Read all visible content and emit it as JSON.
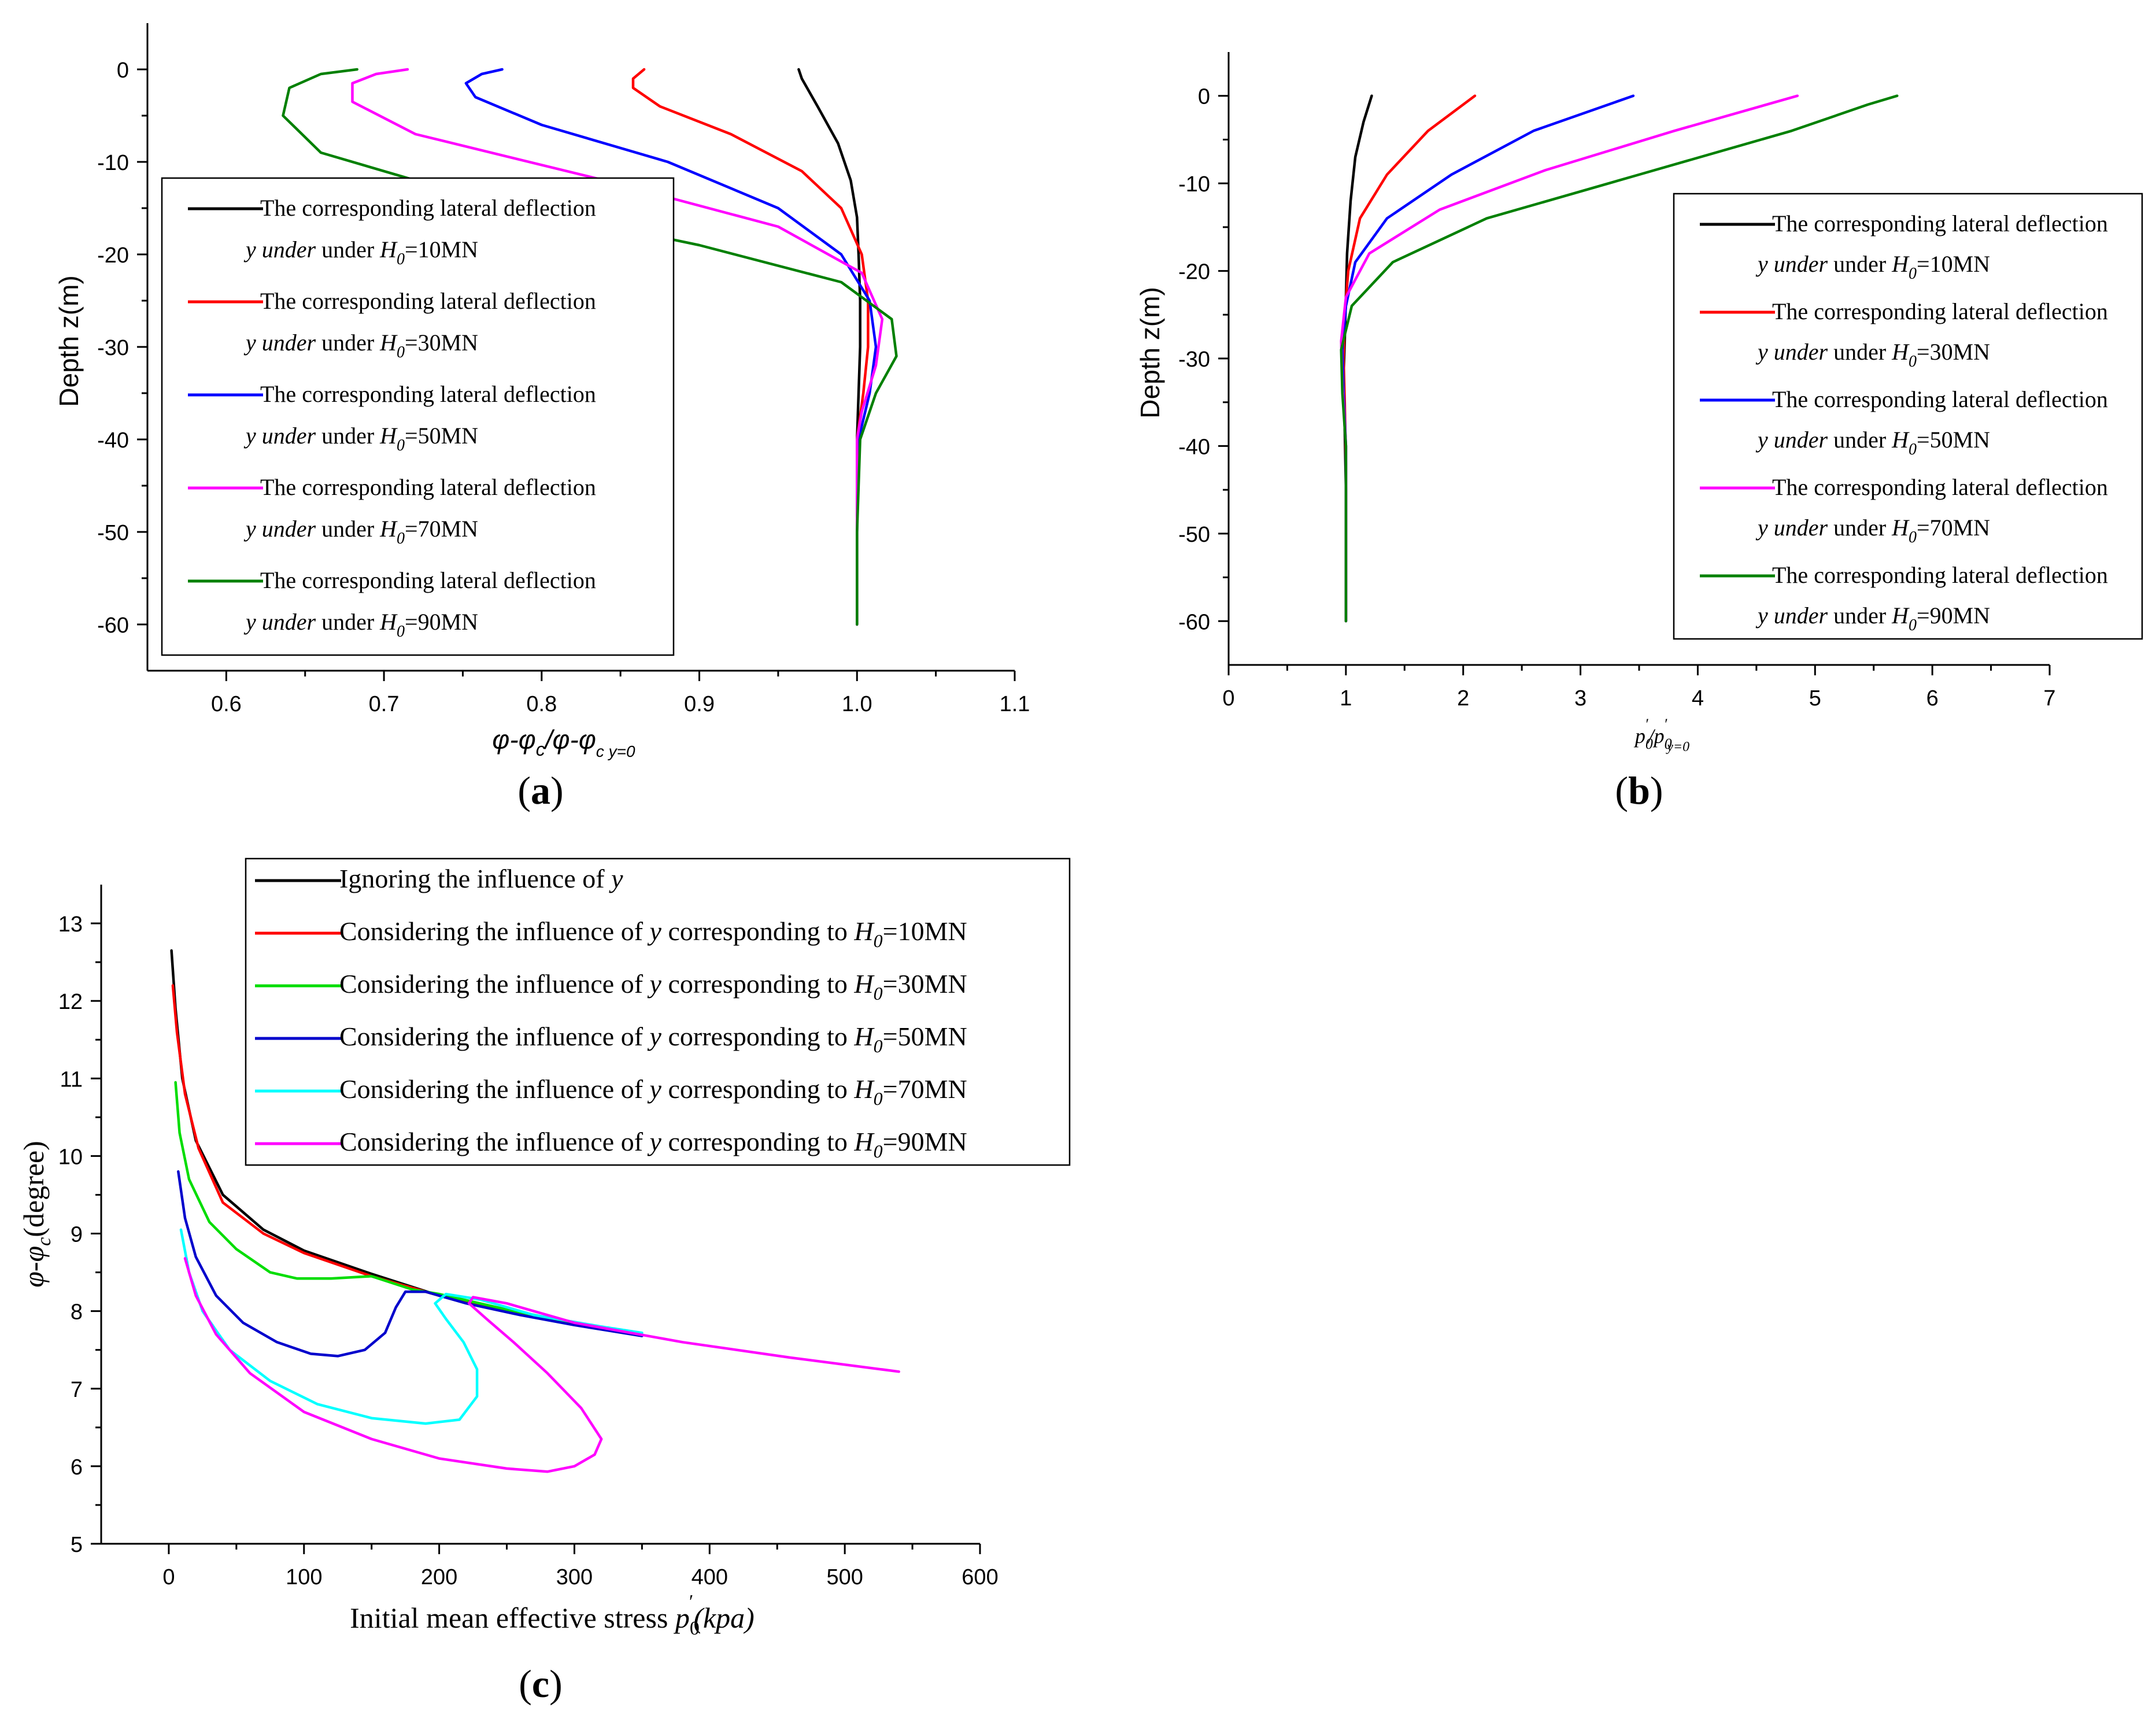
{
  "chart_data": [
    {
      "id": "a",
      "type": "line",
      "panel_label": "(a)",
      "title": "",
      "xlabel_parts": [
        "φ-φ",
        "c",
        "/φ-φ",
        "c y=0"
      ],
      "ylabel": "Depth z(m)",
      "xlim": [
        0.55,
        1.1
      ],
      "ylim": [
        -65,
        5
      ],
      "xticks": [
        0.6,
        0.7,
        0.8,
        0.9,
        1.0,
        1.1
      ],
      "xtick_labels": [
        "0.6",
        "0.7",
        "0.8",
        "0.9",
        "1.0",
        "1.1"
      ],
      "yticks": [
        0,
        -10,
        -20,
        -30,
        -40,
        -50,
        -60
      ],
      "ytick_labels": [
        "0",
        "-10",
        "-20",
        "-30",
        "-40",
        "-50",
        "-60"
      ],
      "legend_position": "center-left",
      "series": [
        {
          "color": "#000000",
          "line1": "The corresponding lateral deflection",
          "line2_pre": "y under ",
          "line2_sym": "H",
          "line2_sub": "0",
          "line2_post": "=10MN",
          "x": [
            0.963,
            0.965,
            0.975,
            0.988,
            0.996,
            1.0,
            1.001,
            1.002,
            1.002,
            1.001,
            1.0,
            1.0,
            1.0
          ],
          "y": [
            0,
            -1,
            -4,
            -8,
            -12,
            -16,
            -20,
            -25,
            -30,
            -35,
            -40,
            -50,
            -60
          ]
        },
        {
          "color": "#ff0000",
          "line1": "The corresponding lateral deflection",
          "line2_pre": "y under ",
          "line2_sym": "H",
          "line2_sub": "0",
          "line2_post": "=30MN",
          "x": [
            0.865,
            0.858,
            0.858,
            0.875,
            0.92,
            0.965,
            0.99,
            1.003,
            1.007,
            1.007,
            1.004,
            1.0,
            1.0,
            1.0
          ],
          "y": [
            0,
            -1,
            -2,
            -4,
            -7,
            -11,
            -15,
            -20,
            -25,
            -30,
            -35,
            -40,
            -50,
            -60
          ]
        },
        {
          "color": "#0000ff",
          "line1": "The corresponding lateral deflection",
          "line2_pre": "y under ",
          "line2_sym": "H",
          "line2_sub": "0",
          "line2_post": "=50MN",
          "x": [
            0.775,
            0.762,
            0.752,
            0.758,
            0.8,
            0.88,
            0.95,
            0.99,
            1.008,
            1.012,
            1.008,
            1.001,
            1.0,
            1.0
          ],
          "y": [
            0,
            -0.5,
            -1.5,
            -3,
            -6,
            -10,
            -15,
            -20,
            -25,
            -30,
            -35,
            -40,
            -50,
            -60
          ]
        },
        {
          "color": "#ff00ff",
          "line1": "The corresponding lateral deflection",
          "line2_pre": "y under ",
          "line2_sym": "H",
          "line2_sub": "0",
          "line2_post": "=70MN",
          "x": [
            0.715,
            0.695,
            0.68,
            0.68,
            0.72,
            0.84,
            0.95,
            1.003,
            1.016,
            1.012,
            1.003,
            1.0,
            1.0,
            1.0
          ],
          "y": [
            0,
            -0.5,
            -1.5,
            -3.5,
            -7,
            -12,
            -17,
            -22,
            -27,
            -32,
            -37,
            -40,
            -50,
            -60
          ]
        },
        {
          "color": "#008000",
          "line1": "The corresponding lateral deflection",
          "line2_pre": "y under ",
          "line2_sym": "H",
          "line2_sub": "0",
          "line2_post": "=90MN",
          "x": [
            0.683,
            0.66,
            0.64,
            0.636,
            0.66,
            0.76,
            0.9,
            0.99,
            1.022,
            1.025,
            1.012,
            1.002,
            1.0,
            1.0
          ],
          "y": [
            0,
            -0.5,
            -2,
            -5,
            -9,
            -14,
            -19,
            -23,
            -27,
            -31,
            -35,
            -40,
            -50,
            -60
          ]
        }
      ]
    },
    {
      "id": "b",
      "type": "line",
      "panel_label": "(b)",
      "title": "",
      "xlabel_parts": [
        "p",
        "0",
        "′",
        "/p",
        "0",
        "′",
        "y=0"
      ],
      "ylabel": "Depth z(m)",
      "xlim": [
        0,
        7
      ],
      "ylim": [
        -65,
        5
      ],
      "xticks": [
        0,
        1,
        2,
        3,
        4,
        5,
        6,
        7
      ],
      "xtick_labels": [
        "0",
        "1",
        "2",
        "3",
        "4",
        "5",
        "6",
        "7"
      ],
      "yticks": [
        0,
        -10,
        -20,
        -30,
        -40,
        -50,
        -60
      ],
      "ytick_labels": [
        "0",
        "-10",
        "-20",
        "-30",
        "-40",
        "-50",
        "-60"
      ],
      "legend_position": "right",
      "series": [
        {
          "color": "#000000",
          "line1": "The corresponding lateral deflection",
          "line2_pre": "y under ",
          "line2_sym": "H",
          "line2_sub": "0",
          "line2_post": "=10MN",
          "x": [
            1.22,
            1.15,
            1.08,
            1.04,
            1.01,
            1.0,
            0.99,
            0.98,
            0.99,
            1.0,
            1.0
          ],
          "y": [
            0,
            -3,
            -7,
            -12,
            -18,
            -23,
            -28,
            -32,
            -38,
            -45,
            -60
          ]
        },
        {
          "color": "#ff0000",
          "line1": "The corresponding lateral deflection",
          "line2_pre": "y under ",
          "line2_sym": "H",
          "line2_sub": "0",
          "line2_post": "=30MN",
          "x": [
            2.1,
            1.7,
            1.35,
            1.12,
            1.02,
            0.99,
            0.98,
            0.99,
            1.0,
            1.0
          ],
          "y": [
            0,
            -4,
            -9,
            -14,
            -20,
            -25,
            -30,
            -35,
            -42,
            -60
          ]
        },
        {
          "color": "#0000ff",
          "line1": "The corresponding lateral deflection",
          "line2_pre": "y under ",
          "line2_sym": "H",
          "line2_sub": "0",
          "line2_post": "=50MN",
          "x": [
            3.45,
            2.6,
            1.9,
            1.35,
            1.08,
            1.0,
            0.97,
            0.98,
            1.0,
            1.0
          ],
          "y": [
            0,
            -4,
            -9,
            -14,
            -19,
            -24,
            -29,
            -34,
            -40,
            -60
          ]
        },
        {
          "color": "#ff00ff",
          "line1": "The corresponding lateral deflection",
          "line2_pre": "y under ",
          "line2_sym": "H",
          "line2_sub": "0",
          "line2_post": "=70MN",
          "x": [
            4.85,
            3.8,
            2.7,
            1.8,
            1.2,
            1.0,
            0.96,
            0.97,
            1.0,
            1.0
          ],
          "y": [
            0,
            -4,
            -8.5,
            -13,
            -18,
            -23,
            -28,
            -33,
            -40,
            -60
          ]
        },
        {
          "color": "#008000",
          "line1": "The corresponding lateral deflection",
          "line2_pre": "y under ",
          "line2_sym": "H",
          "line2_sub": "0",
          "line2_post": "=90MN",
          "x": [
            5.7,
            5.45,
            4.8,
            3.5,
            2.2,
            1.4,
            1.05,
            0.96,
            0.97,
            1.0,
            1.0
          ],
          "y": [
            0,
            -1,
            -4,
            -9,
            -14,
            -19,
            -24,
            -29,
            -34,
            -40,
            -60
          ]
        }
      ]
    },
    {
      "id": "c",
      "type": "line",
      "panel_label": "(c)",
      "title": "",
      "xlabel_parts": [
        "Initial mean effective stress ",
        "p",
        "0",
        "′",
        "(kpa)"
      ],
      "ylabel_parts": [
        "φ-φ",
        "c",
        "(degree)"
      ],
      "xlim": [
        -50,
        600
      ],
      "ylim": [
        5,
        13.5
      ],
      "xticks": [
        0,
        100,
        200,
        300,
        400,
        500,
        600
      ],
      "xtick_labels": [
        "0",
        "100",
        "200",
        "300",
        "400",
        "500",
        "600"
      ],
      "yticks": [
        5,
        6,
        7,
        8,
        9,
        10,
        11,
        12,
        13
      ],
      "ytick_labels": [
        "5",
        "6",
        "7",
        "8",
        "9",
        "10",
        "11",
        "12",
        "13"
      ],
      "legend_position": "top",
      "series": [
        {
          "color": "#000000",
          "label_pre": "Ignoring the influence of ",
          "label_y": "y",
          "label_mid": "",
          "label_sym": "",
          "label_sub": "",
          "label_post": "",
          "x": [
            2,
            5,
            10,
            20,
            40,
            70,
            100,
            150,
            200,
            250,
            300,
            350
          ],
          "y": [
            12.65,
            11.9,
            11.0,
            10.2,
            9.5,
            9.05,
            8.78,
            8.48,
            8.2,
            8.0,
            7.85,
            7.7
          ]
        },
        {
          "color": "#ff0000",
          "label_pre": "Considering the influence of ",
          "label_y": "y",
          "label_mid": " corresponding to ",
          "label_sym": "H",
          "label_sub": "0",
          "label_post": "=10MN",
          "x": [
            3,
            6,
            12,
            22,
            40,
            70,
            100,
            150,
            200,
            250,
            300,
            350
          ],
          "y": [
            12.2,
            11.6,
            10.8,
            10.1,
            9.4,
            9.0,
            8.75,
            8.45,
            8.2,
            8.0,
            7.85,
            7.7
          ]
        },
        {
          "color": "#00dd00",
          "label_pre": "Considering the influence of ",
          "label_y": "y",
          "label_mid": " corresponding to ",
          "label_sym": "H",
          "label_sub": "0",
          "label_post": "=30MN",
          "x": [
            5,
            8,
            15,
            30,
            50,
            75,
            95,
            120,
            150,
            180,
            200,
            250,
            300,
            350
          ],
          "y": [
            10.95,
            10.3,
            9.7,
            9.15,
            8.8,
            8.5,
            8.42,
            8.42,
            8.45,
            8.28,
            8.22,
            8.02,
            7.85,
            7.7
          ]
        },
        {
          "color": "#0000cc",
          "label_pre": "Considering the influence of ",
          "label_y": "y",
          "label_mid": " corresponding to ",
          "label_sym": "H",
          "label_sub": "0",
          "label_post": "=50MN",
          "x": [
            7,
            12,
            20,
            35,
            55,
            80,
            105,
            125,
            145,
            160,
            168,
            175,
            190,
            220,
            260,
            300,
            350
          ],
          "y": [
            9.8,
            9.2,
            8.7,
            8.2,
            7.85,
            7.6,
            7.45,
            7.42,
            7.5,
            7.72,
            8.05,
            8.25,
            8.25,
            8.1,
            7.95,
            7.82,
            7.68
          ]
        },
        {
          "color": "#00ffff",
          "label_pre": "Considering the influence of ",
          "label_y": "y",
          "label_mid": " corresponding to ",
          "label_sym": "H",
          "label_sub": "0",
          "label_post": "=70MN",
          "x": [
            9,
            15,
            25,
            45,
            75,
            110,
            150,
            190,
            215,
            228,
            228,
            218,
            205,
            197,
            205,
            230,
            270,
            320,
            350
          ],
          "y": [
            9.05,
            8.5,
            8.0,
            7.5,
            7.1,
            6.8,
            6.62,
            6.55,
            6.6,
            6.9,
            7.25,
            7.6,
            7.9,
            8.1,
            8.22,
            8.15,
            7.95,
            7.8,
            7.72
          ]
        },
        {
          "color": "#ff00ff",
          "label_pre": "Considering the influence of ",
          "label_y": "y",
          "label_mid": " corresponding to ",
          "label_sym": "H",
          "label_sub": "0",
          "label_post": "=90MN",
          "x": [
            12,
            20,
            35,
            60,
            100,
            150,
            200,
            250,
            280,
            300,
            315,
            320,
            305,
            280,
            255,
            235,
            222,
            225,
            250,
            300,
            380,
            460,
            540
          ],
          "y": [
            8.68,
            8.2,
            7.7,
            7.2,
            6.7,
            6.35,
            6.1,
            5.97,
            5.93,
            6.0,
            6.15,
            6.35,
            6.75,
            7.2,
            7.6,
            7.9,
            8.1,
            8.18,
            8.1,
            7.85,
            7.6,
            7.4,
            7.22
          ]
        }
      ]
    }
  ]
}
